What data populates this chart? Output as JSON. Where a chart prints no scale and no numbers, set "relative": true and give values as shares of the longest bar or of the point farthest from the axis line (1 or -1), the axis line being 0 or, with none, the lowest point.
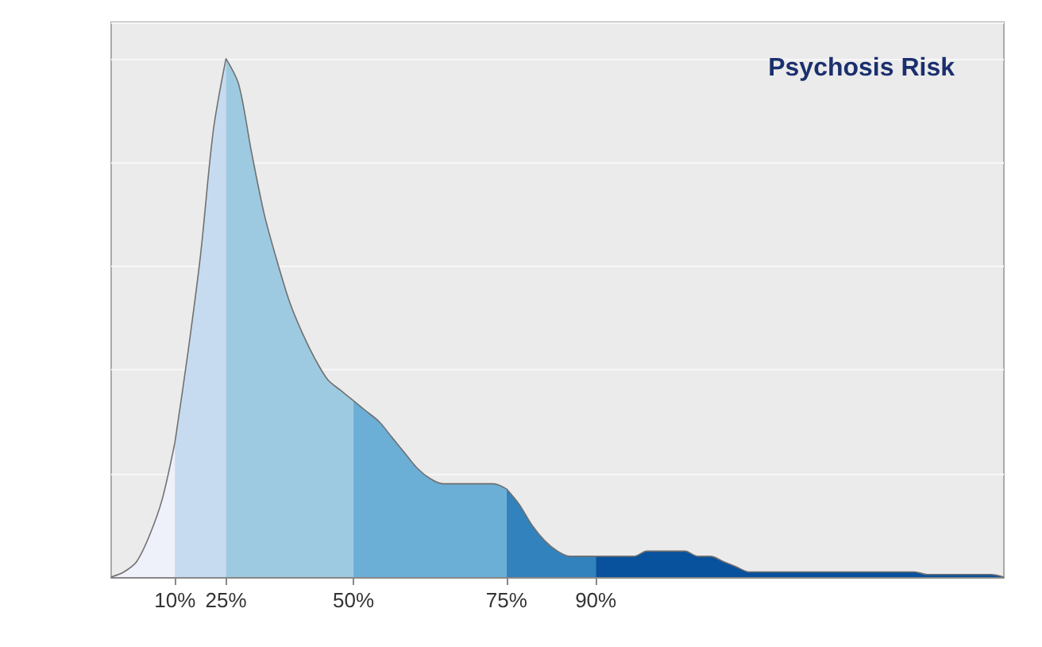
{
  "chart_data": {
    "type": "area",
    "title": "Psychosis Risk",
    "relative": true,
    "grid": "y",
    "categories": [
      null,
      null,
      null,
      null,
      null,
      "10%",
      null,
      null,
      null,
      "25%",
      null,
      null,
      null,
      null,
      null,
      null,
      null,
      null,
      null,
      "50%",
      null,
      null,
      null,
      null,
      null,
      null,
      null,
      null,
      null,
      null,
      null,
      "75%",
      null,
      null,
      null,
      null,
      null,
      null,
      "90%",
      null,
      null,
      null,
      null,
      null,
      null,
      null,
      null,
      null,
      null,
      null,
      null,
      null,
      null,
      null,
      null,
      null,
      null,
      null,
      null,
      null,
      null,
      null,
      null,
      null,
      null,
      null,
      null,
      null,
      null,
      null,
      null
    ],
    "series": [
      {
        "color": "#eef0fa",
        "values": [
          0,
          0.01,
          0.03,
          0.08,
          0.15,
          0.26,
          null,
          null,
          null,
          null,
          null,
          null,
          null,
          null,
          null,
          null,
          null,
          null,
          null,
          null,
          null,
          null,
          null,
          null,
          null,
          null,
          null,
          null,
          null,
          null,
          null,
          null,
          null,
          null,
          null,
          null,
          null,
          null,
          null,
          null,
          null,
          null,
          null,
          null,
          null,
          null,
          null,
          null,
          null,
          null,
          null,
          null,
          null,
          null,
          null,
          null,
          null,
          null,
          null,
          null,
          null,
          null,
          null,
          null,
          null,
          null,
          null,
          null,
          null,
          null,
          null
        ]
      },
      {
        "color": "#c6dbef",
        "values": [
          null,
          null,
          null,
          null,
          null,
          0.26,
          0.43,
          0.62,
          0.86,
          1,
          null,
          null,
          null,
          null,
          null,
          null,
          null,
          null,
          null,
          null,
          null,
          null,
          null,
          null,
          null,
          null,
          null,
          null,
          null,
          null,
          null,
          null,
          null,
          null,
          null,
          null,
          null,
          null,
          null,
          null,
          null,
          null,
          null,
          null,
          null,
          null,
          null,
          null,
          null,
          null,
          null,
          null,
          null,
          null,
          null,
          null,
          null,
          null,
          null,
          null,
          null,
          null,
          null,
          null,
          null,
          null,
          null,
          null,
          null,
          null,
          null
        ]
      },
      {
        "color": "#9ecae1",
        "values": [
          null,
          null,
          null,
          null,
          null,
          null,
          null,
          null,
          null,
          1,
          0.95,
          0.82,
          0.7,
          0.61,
          0.53,
          0.47,
          0.42,
          0.38,
          0.36,
          0.34,
          null,
          null,
          null,
          null,
          null,
          null,
          null,
          null,
          null,
          null,
          null,
          null,
          null,
          null,
          null,
          null,
          null,
          null,
          null,
          null,
          null,
          null,
          null,
          null,
          null,
          null,
          null,
          null,
          null,
          null,
          null,
          null,
          null,
          null,
          null,
          null,
          null,
          null,
          null,
          null,
          null,
          null,
          null,
          null,
          null,
          null,
          null,
          null,
          null,
          null,
          null
        ]
      },
      {
        "color": "#6baed6",
        "values": [
          null,
          null,
          null,
          null,
          null,
          null,
          null,
          null,
          null,
          null,
          null,
          null,
          null,
          null,
          null,
          null,
          null,
          null,
          null,
          0.34,
          0.32,
          0.3,
          0.27,
          0.24,
          0.21,
          0.19,
          0.18,
          0.18,
          0.18,
          0.18,
          0.18,
          0.17,
          null,
          null,
          null,
          null,
          null,
          null,
          null,
          null,
          null,
          null,
          null,
          null,
          null,
          null,
          null,
          null,
          null,
          null,
          null,
          null,
          null,
          null,
          null,
          null,
          null,
          null,
          null,
          null,
          null,
          null,
          null,
          null,
          null,
          null,
          null,
          null,
          null,
          null,
          null
        ]
      },
      {
        "color": "#3182bd",
        "values": [
          null,
          null,
          null,
          null,
          null,
          null,
          null,
          null,
          null,
          null,
          null,
          null,
          null,
          null,
          null,
          null,
          null,
          null,
          null,
          null,
          null,
          null,
          null,
          null,
          null,
          null,
          null,
          null,
          null,
          null,
          null,
          0.17,
          0.14,
          0.1,
          0.07,
          0.05,
          0.04,
          0.04,
          0.04,
          null,
          null,
          null,
          null,
          null,
          null,
          null,
          null,
          null,
          null,
          null,
          null,
          null,
          null,
          null,
          null,
          null,
          null,
          null,
          null,
          null,
          null,
          null,
          null,
          null,
          null,
          null,
          null,
          null,
          null,
          null,
          null
        ]
      },
      {
        "color": "#08519c",
        "values": [
          null,
          null,
          null,
          null,
          null,
          null,
          null,
          null,
          null,
          null,
          null,
          null,
          null,
          null,
          null,
          null,
          null,
          null,
          null,
          null,
          null,
          null,
          null,
          null,
          null,
          null,
          null,
          null,
          null,
          null,
          null,
          null,
          null,
          null,
          null,
          null,
          null,
          null,
          0.04,
          0.04,
          0.04,
          0.04,
          0.05,
          0.05,
          0.05,
          0.05,
          0.04,
          0.04,
          0.03,
          0.02,
          0.01,
          0.01,
          0.01,
          0.01,
          0.01,
          0.01,
          0.01,
          0.01,
          0.01,
          0.01,
          0.01,
          0.01,
          0.01,
          0.01,
          0.005,
          0.005,
          0.005,
          0.005,
          0.005,
          0.005,
          0
        ]
      }
    ]
  }
}
